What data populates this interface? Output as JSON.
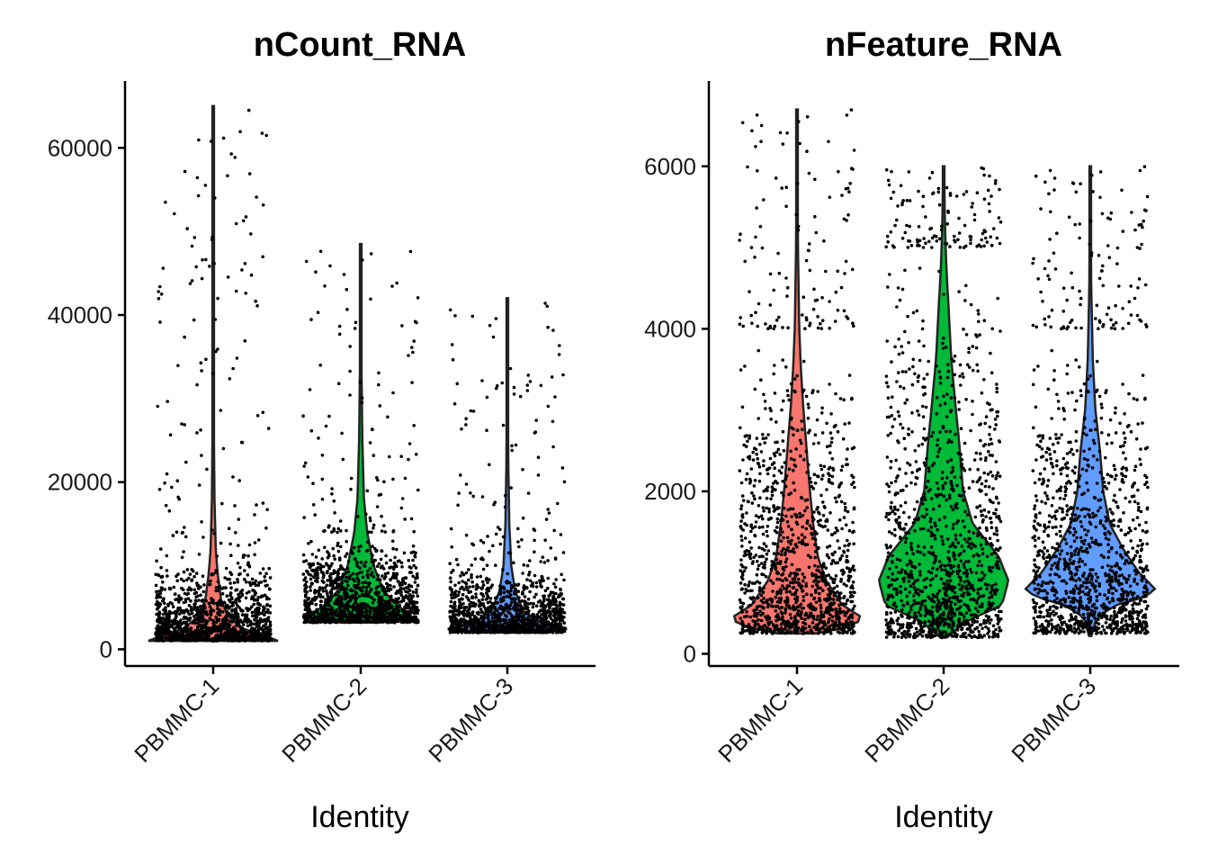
{
  "chart_data": [
    {
      "type": "violin",
      "title": "nCount_RNA",
      "xlabel": "Identity",
      "ylabel": "",
      "categories": [
        "PBMMC-1",
        "PBMMC-2",
        "PBMMC-3"
      ],
      "colors": [
        "#F8766D",
        "#00BA38",
        "#619CFF"
      ],
      "ylim": [
        -2000,
        68000
      ],
      "yticks": [
        0,
        20000,
        40000,
        60000
      ],
      "ytick_labels": [
        "0",
        "20000",
        "40000",
        "60000"
      ],
      "series": [
        {
          "name": "PBMMC-1",
          "min": 1000,
          "max": 65000,
          "bulk": [
            1000,
            11000
          ],
          "density": [
            [
              1000,
              1.0
            ],
            [
              1500,
              0.85
            ],
            [
              2500,
              0.45
            ],
            [
              4000,
              0.22
            ],
            [
              6000,
              0.12
            ],
            [
              9000,
              0.07
            ],
            [
              12000,
              0.04
            ],
            [
              18000,
              0.02
            ],
            [
              25000,
              0.012
            ],
            [
              40000,
              0.006
            ],
            [
              65000,
              0.003
            ]
          ]
        },
        {
          "name": "PBMMC-2",
          "min": 3200,
          "max": 48500,
          "bulk": [
            3200,
            14000
          ],
          "density": [
            [
              3200,
              0.3
            ],
            [
              3800,
              0.85
            ],
            [
              5000,
              0.6
            ],
            [
              7000,
              0.35
            ],
            [
              10000,
              0.2
            ],
            [
              14000,
              0.1
            ],
            [
              18000,
              0.05
            ],
            [
              25000,
              0.025
            ],
            [
              35000,
              0.01
            ],
            [
              48500,
              0.004
            ]
          ]
        },
        {
          "name": "PBMMC-3",
          "min": 2000,
          "max": 42000,
          "bulk": [
            2000,
            10000
          ],
          "density": [
            [
              2000,
              0.5
            ],
            [
              2400,
              0.95
            ],
            [
              3000,
              0.55
            ],
            [
              4500,
              0.25
            ],
            [
              7000,
              0.12
            ],
            [
              10000,
              0.06
            ],
            [
              15000,
              0.03
            ],
            [
              22000,
              0.015
            ],
            [
              32000,
              0.007
            ],
            [
              42000,
              0.003
            ]
          ]
        }
      ]
    },
    {
      "type": "violin",
      "title": "nFeature_RNA",
      "xlabel": "Identity",
      "ylabel": "",
      "categories": [
        "PBMMC-1",
        "PBMMC-2",
        "PBMMC-3"
      ],
      "colors": [
        "#F8766D",
        "#00BA38",
        "#619CFF"
      ],
      "ylim": [
        -150,
        7050
      ],
      "yticks": [
        0,
        2000,
        4000,
        6000
      ],
      "ytick_labels": [
        "0",
        "2000",
        "4000",
        "6000"
      ],
      "series": [
        {
          "name": "PBMMC-1",
          "min": 250,
          "max": 6700,
          "bulk": [
            250,
            4000
          ],
          "density": [
            [
              250,
              0.3
            ],
            [
              350,
              0.9
            ],
            [
              450,
              1.0
            ],
            [
              600,
              0.7
            ],
            [
              900,
              0.45
            ],
            [
              1200,
              0.32
            ],
            [
              1600,
              0.25
            ],
            [
              2000,
              0.2
            ],
            [
              2500,
              0.15
            ],
            [
              3000,
              0.1
            ],
            [
              3500,
              0.06
            ],
            [
              4000,
              0.035
            ],
            [
              5000,
              0.015
            ],
            [
              6000,
              0.008
            ],
            [
              6700,
              0.004
            ]
          ]
        },
        {
          "name": "PBMMC-2",
          "min": 200,
          "max": 6000,
          "bulk": [
            200,
            5000
          ],
          "density": [
            [
              200,
              0.05
            ],
            [
              400,
              0.35
            ],
            [
              600,
              0.9
            ],
            [
              900,
              1.0
            ],
            [
              1200,
              0.85
            ],
            [
              1600,
              0.45
            ],
            [
              2000,
              0.3
            ],
            [
              2600,
              0.24
            ],
            [
              3000,
              0.19
            ],
            [
              3600,
              0.12
            ],
            [
              4200,
              0.08
            ],
            [
              4800,
              0.04
            ],
            [
              5300,
              0.02
            ],
            [
              6000,
              0.005
            ]
          ]
        },
        {
          "name": "PBMMC-3",
          "min": 220,
          "max": 6000,
          "bulk": [
            250,
            4000
          ],
          "density": [
            [
              220,
              0.02
            ],
            [
              450,
              0.1
            ],
            [
              600,
              0.4
            ],
            [
              700,
              0.85
            ],
            [
              800,
              1.0
            ],
            [
              1000,
              0.75
            ],
            [
              1300,
              0.5
            ],
            [
              1600,
              0.3
            ],
            [
              2000,
              0.2
            ],
            [
              2500,
              0.15
            ],
            [
              3000,
              0.08
            ],
            [
              3600,
              0.04
            ],
            [
              4500,
              0.015
            ],
            [
              6000,
              0.005
            ]
          ]
        }
      ]
    }
  ]
}
